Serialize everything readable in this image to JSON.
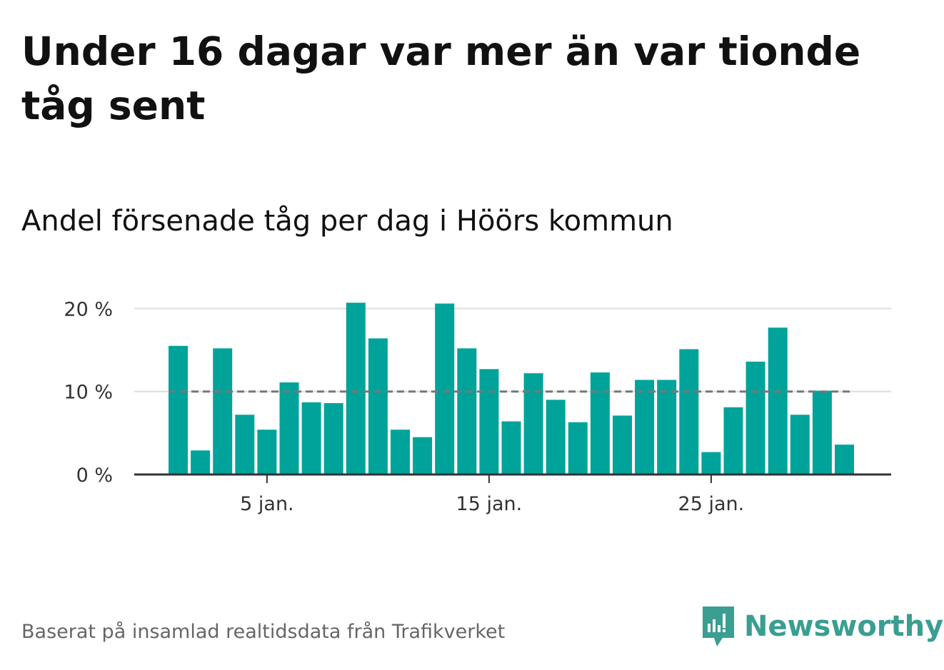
{
  "title": "Under 16 dagar var mer än var tionde tåg sent",
  "subtitle": "Andel försenade tåg per dag i Höörs kommun",
  "footer": "Baserat på insamlad realtidsdata från Trafikverket",
  "brand": {
    "name": "Newsworthy",
    "icon": "newsworthy-logo-icon"
  },
  "colors": {
    "bar": "#00a39a",
    "reference_line": "#777777",
    "grid": "#dddddd",
    "axis": "#333333",
    "brand": "#3a9e91"
  },
  "chart_data": {
    "type": "bar",
    "x": [
      1,
      2,
      3,
      4,
      5,
      6,
      7,
      8,
      9,
      10,
      11,
      12,
      13,
      14,
      15,
      16,
      17,
      18,
      19,
      20,
      21,
      22,
      23,
      24,
      25,
      26,
      27,
      28,
      29,
      30,
      31
    ],
    "values": [
      15.5,
      2.9,
      15.2,
      7.2,
      5.4,
      11.1,
      8.7,
      8.6,
      20.7,
      16.4,
      5.4,
      4.5,
      20.6,
      15.2,
      12.7,
      6.4,
      12.2,
      9.0,
      6.3,
      12.3,
      7.1,
      11.4,
      11.4,
      15.1,
      2.7,
      8.1,
      13.6,
      17.7,
      7.2,
      10.1,
      3.6
    ],
    "ylim": [
      0,
      22
    ],
    "yticks": [
      0,
      10,
      20
    ],
    "ytick_labels": [
      "0 %",
      "10 %",
      "20 %"
    ],
    "xticks": [
      5,
      15,
      25
    ],
    "xtick_labels": [
      "5 jan.",
      "15 jan.",
      "25 jan."
    ],
    "reference_line": 10,
    "grid": true,
    "xlabel": "",
    "ylabel": ""
  }
}
